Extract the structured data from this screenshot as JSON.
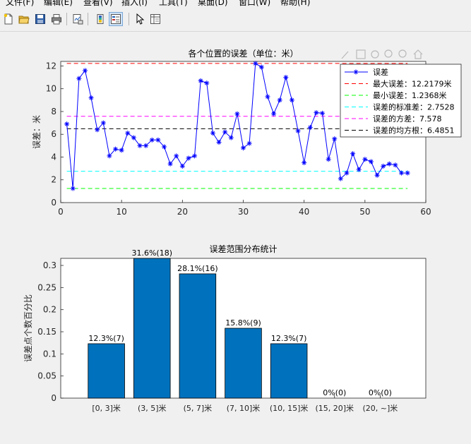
{
  "menu": [
    {
      "label": "文件(F)"
    },
    {
      "label": "编辑(E)"
    },
    {
      "label": "查看(V)"
    },
    {
      "label": "插入(I)"
    },
    {
      "label": "工具(T)"
    },
    {
      "label": "桌面(D)"
    },
    {
      "label": "窗口(W)"
    },
    {
      "label": "帮助(H)"
    }
  ],
  "toolbar": {
    "buttons": [
      {
        "name": "new-figure-button",
        "icon": "new-file-icon"
      },
      {
        "name": "open-file-button",
        "icon": "folder-open-icon"
      },
      {
        "name": "save-figure-button",
        "icon": "save-icon"
      },
      {
        "name": "print-figure-button",
        "icon": "print-icon"
      },
      {
        "name": "link-plot-button",
        "icon": "link-plot-icon"
      },
      {
        "name": "insert-colorbar-button",
        "icon": "colorbar-icon"
      },
      {
        "name": "insert-legend-button",
        "icon": "legend-icon"
      },
      {
        "name": "edit-plot-button",
        "icon": "pointer-icon"
      },
      {
        "name": "property-inspector-button",
        "icon": "property-inspector-icon"
      }
    ]
  },
  "axes_toolbar": [
    "brush-icon",
    "data-tips-icon",
    "pan-icon",
    "zoom-in-icon",
    "zoom-out-icon",
    "home-icon"
  ],
  "chart_data": [
    {
      "type": "line",
      "title": "各个位置的误差（单位：米）",
      "xlabel": "",
      "ylabel": "误差：米",
      "xlim": [
        0,
        60
      ],
      "ylim": [
        0,
        12.4
      ],
      "xticks": [
        0,
        10,
        20,
        30,
        40,
        50,
        60
      ],
      "yticks": [
        0,
        2,
        4,
        6,
        8,
        10,
        12
      ],
      "grid": false,
      "legend_position": "top-right",
      "series": [
        {
          "name": "误差",
          "color": "#0000ff",
          "marker": "*",
          "x": [
            1,
            2,
            3,
            4,
            5,
            6,
            7,
            8,
            9,
            10,
            11,
            12,
            13,
            14,
            15,
            16,
            17,
            18,
            19,
            20,
            21,
            22,
            23,
            24,
            25,
            26,
            27,
            28,
            29,
            30,
            31,
            32,
            33,
            34,
            35,
            36,
            37,
            38,
            39,
            40,
            41,
            42,
            43,
            44,
            45,
            46,
            47,
            48,
            49,
            50,
            51,
            52,
            53,
            54,
            55,
            56,
            57
          ],
          "values": [
            6.9,
            1.24,
            10.9,
            11.6,
            9.2,
            6.4,
            7.0,
            4.1,
            4.7,
            4.6,
            6.1,
            5.7,
            5.0,
            5.0,
            5.5,
            5.5,
            4.9,
            3.4,
            4.1,
            3.2,
            3.9,
            4.1,
            10.7,
            10.5,
            6.1,
            5.3,
            6.2,
            5.7,
            7.8,
            4.8,
            5.2,
            12.22,
            11.9,
            9.3,
            7.8,
            9.0,
            11.0,
            9.0,
            6.3,
            3.5,
            6.6,
            7.9,
            7.85,
            3.8,
            5.6,
            2.1,
            2.6,
            4.3,
            2.9,
            3.8,
            3.6,
            2.4,
            3.2,
            3.4,
            3.3,
            2.6,
            2.6
          ]
        },
        {
          "name": "最大误差：12.2179米",
          "color": "#ff0000",
          "dash": true,
          "values": [
            12.2179
          ]
        },
        {
          "name": "最小误差：1.2368米",
          "color": "#00ff00",
          "dash": true,
          "values": [
            1.2368
          ]
        },
        {
          "name": "误差的标准差：2.7528",
          "color": "#00ffff",
          "dash": true,
          "values": [
            2.7528
          ]
        },
        {
          "name": "误差的方差：7.578",
          "color": "#ff00ff",
          "dash": true,
          "values": [
            7.578
          ]
        },
        {
          "name": "误差的均方根：6.4851",
          "color": "#000000",
          "dash": true,
          "values": [
            6.4851
          ]
        }
      ]
    },
    {
      "type": "bar",
      "title": "误差范围分布统计",
      "xlabel": "",
      "ylabel": "误差点个数百分比",
      "ylim": [
        0,
        0.316
      ],
      "yticks": [
        0,
        0.05,
        0.1,
        0.15,
        0.2,
        0.25,
        0.3
      ],
      "bar_color": "#0072bd",
      "grid": false,
      "categories": [
        "[0, 3]米",
        "(3, 5]米",
        "(5, 7]米",
        "(7, 10]米",
        "(10, 15]米",
        "(15, 20]米",
        "(20, ~]米"
      ],
      "values": [
        0.123,
        0.316,
        0.281,
        0.158,
        0.123,
        0,
        0
      ],
      "data_labels": [
        "12.3%(7)",
        "31.6%(18)",
        "28.1%(16)",
        "15.8%(9)",
        "12.3%(7)",
        "0%(0)",
        "0%(0)"
      ]
    }
  ]
}
